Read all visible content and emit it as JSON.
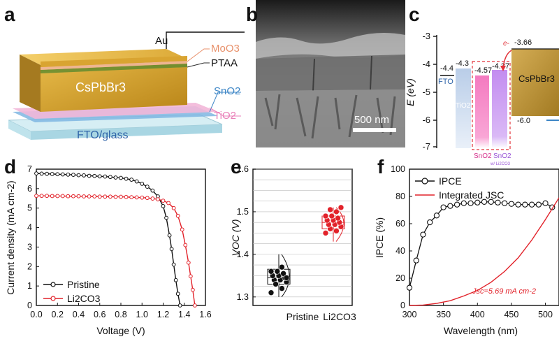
{
  "panels": {
    "a": {
      "label": "a",
      "layers": {
        "au": "Au",
        "moo3": "MoO3",
        "ptaa": "PTAA",
        "cspbbr3": "CsPbBr3",
        "sno2": "SnO2",
        "tio2": "TiO2",
        "fto": "FTO/glass"
      },
      "colors": {
        "au": "#b58a2e",
        "moo3": "#e8906a",
        "ptaa": "#2b2b2b",
        "sno2": "#3d86c6",
        "tio2": "#e97fb8",
        "fto": "#2f64a8"
      }
    },
    "b": {
      "label": "b",
      "scalebar": "500 nm"
    },
    "c": {
      "label": "c",
      "ylabel": "E (eV)",
      "ylim": [
        -7,
        -3
      ],
      "yticks": [
        "-3",
        "-4",
        "-5",
        "-6",
        "-7"
      ],
      "levels": {
        "fto": "-4.4",
        "tio2": "-4.3",
        "sno2": "-4.57",
        "sno2_li": "-4.37",
        "cspbbr3_cb": "-3.66",
        "cspbbr3_vb": "-6.0"
      },
      "labels": {
        "fto": "FTO",
        "tio2": "TiO2",
        "sno2": "SnO2",
        "sno2_li": "SnO2",
        "sno2_li_sub": "w/ Li2CO3",
        "cspbbr3": "CsPbBr3",
        "electron": "e-"
      },
      "colors": {
        "fto": "#2f64a8",
        "tio2": "#b9cde8",
        "sno2": "#f47ac0",
        "sno2_li": "#c38cf0",
        "cspbbr3": "#c59b3e",
        "dash": "#e2333a"
      }
    },
    "d": {
      "label": "d"
    },
    "e": {
      "label": "e"
    },
    "f": {
      "label": "f"
    }
  },
  "chart_data": [
    {
      "id": "d",
      "type": "line",
      "title": "",
      "xlabel": "Voltage (V)",
      "ylabel": "Current density (mA cm-2)",
      "xlim": [
        0,
        1.6
      ],
      "ylim": [
        0,
        7
      ],
      "xticks": [
        "0.0",
        "0.2",
        "0.4",
        "0.6",
        "0.8",
        "1.0",
        "1.2",
        "1.4",
        "1.6"
      ],
      "yticks": [
        "0",
        "1",
        "2",
        "3",
        "4",
        "5",
        "6",
        "7"
      ],
      "legend_position": "bottom-left",
      "series": [
        {
          "name": "Pristine",
          "color": "#111111",
          "x": [
            0.0,
            0.05,
            0.1,
            0.15,
            0.2,
            0.25,
            0.3,
            0.35,
            0.4,
            0.45,
            0.5,
            0.55,
            0.6,
            0.65,
            0.7,
            0.75,
            0.8,
            0.85,
            0.9,
            0.95,
            1.0,
            1.05,
            1.1,
            1.15,
            1.2,
            1.23,
            1.26,
            1.28,
            1.3,
            1.32,
            1.34,
            1.36
          ],
          "y": [
            6.78,
            6.77,
            6.76,
            6.75,
            6.74,
            6.73,
            6.72,
            6.71,
            6.69,
            6.68,
            6.66,
            6.65,
            6.63,
            6.62,
            6.6,
            6.57,
            6.55,
            6.51,
            6.46,
            6.37,
            6.25,
            6.1,
            5.9,
            5.6,
            5.1,
            4.5,
            3.6,
            2.9,
            2.1,
            1.3,
            0.6,
            0.0
          ]
        },
        {
          "name": "Li2CO3",
          "color": "#e2222a",
          "x": [
            0.0,
            0.05,
            0.1,
            0.15,
            0.2,
            0.25,
            0.3,
            0.35,
            0.4,
            0.45,
            0.5,
            0.55,
            0.6,
            0.65,
            0.7,
            0.75,
            0.8,
            0.85,
            0.9,
            0.95,
            1.0,
            1.05,
            1.1,
            1.15,
            1.2,
            1.25,
            1.3,
            1.34,
            1.38,
            1.41,
            1.44,
            1.46,
            1.48,
            1.5
          ],
          "y": [
            5.63,
            5.63,
            5.63,
            5.62,
            5.62,
            5.62,
            5.61,
            5.61,
            5.61,
            5.6,
            5.6,
            5.6,
            5.59,
            5.59,
            5.59,
            5.58,
            5.58,
            5.57,
            5.56,
            5.55,
            5.54,
            5.52,
            5.49,
            5.45,
            5.38,
            5.26,
            5.0,
            4.6,
            3.9,
            3.1,
            2.2,
            1.5,
            0.8,
            0.0
          ]
        }
      ]
    },
    {
      "id": "e",
      "type": "scatter",
      "title": "",
      "xlabel": "",
      "ylabel": "VOC (V)",
      "ylim": [
        1.28,
        1.6
      ],
      "yticks": [
        "1.3",
        "1.4",
        "1.5",
        "1.6"
      ],
      "categories": [
        "Pristine",
        "Li2CO3"
      ],
      "series": [
        {
          "name": "Pristine",
          "color": "#111111",
          "box": {
            "q1": 1.33,
            "median": 1.345,
            "q3": 1.365,
            "whisker_low": 1.3,
            "whisker_high": 1.4
          },
          "values": [
            1.31,
            1.32,
            1.33,
            1.335,
            1.34,
            1.34,
            1.345,
            1.35,
            1.35,
            1.355,
            1.36,
            1.36,
            1.37,
            1.33,
            1.345
          ]
        },
        {
          "name": "Li2CO3",
          "color": "#e2222a",
          "box": {
            "q1": 1.46,
            "median": 1.475,
            "q3": 1.49,
            "whisker_low": 1.43,
            "whisker_high": 1.51
          },
          "values": [
            1.45,
            1.455,
            1.46,
            1.465,
            1.47,
            1.47,
            1.475,
            1.48,
            1.48,
            1.485,
            1.49,
            1.49,
            1.5,
            1.505,
            1.51
          ]
        }
      ]
    },
    {
      "id": "f",
      "type": "line",
      "title": "",
      "xlabel": "Wavelength (nm)",
      "ylabel": "IPCE (%)",
      "xlim": [
        300,
        520
      ],
      "ylim": [
        0,
        100
      ],
      "xticks": [
        "300",
        "350",
        "400",
        "450",
        "500"
      ],
      "yticks": [
        "0",
        "20",
        "40",
        "60",
        "80",
        "100"
      ],
      "legend_position": "top-left",
      "annotation": "Jsc=5.69 mA cm-2",
      "series": [
        {
          "name": "IPCE",
          "color": "#111111",
          "x": [
            300,
            310,
            320,
            330,
            340,
            350,
            360,
            370,
            380,
            390,
            400,
            410,
            420,
            430,
            440,
            450,
            460,
            470,
            480,
            490,
            500,
            510
          ],
          "y": [
            13,
            33,
            52,
            61,
            66,
            72,
            73,
            74,
            75,
            75,
            75.5,
            76,
            76,
            75.5,
            75,
            74.5,
            74,
            74,
            74,
            74,
            75,
            72
          ]
        },
        {
          "name": "Integrated JSC",
          "color": "#e2222a",
          "x": [
            300,
            320,
            340,
            360,
            380,
            400,
            420,
            440,
            460,
            480,
            500,
            520
          ],
          "y": [
            0,
            0.3,
            1.5,
            3.5,
            7,
            11,
            17,
            25,
            35,
            48,
            63,
            79
          ]
        }
      ]
    }
  ]
}
